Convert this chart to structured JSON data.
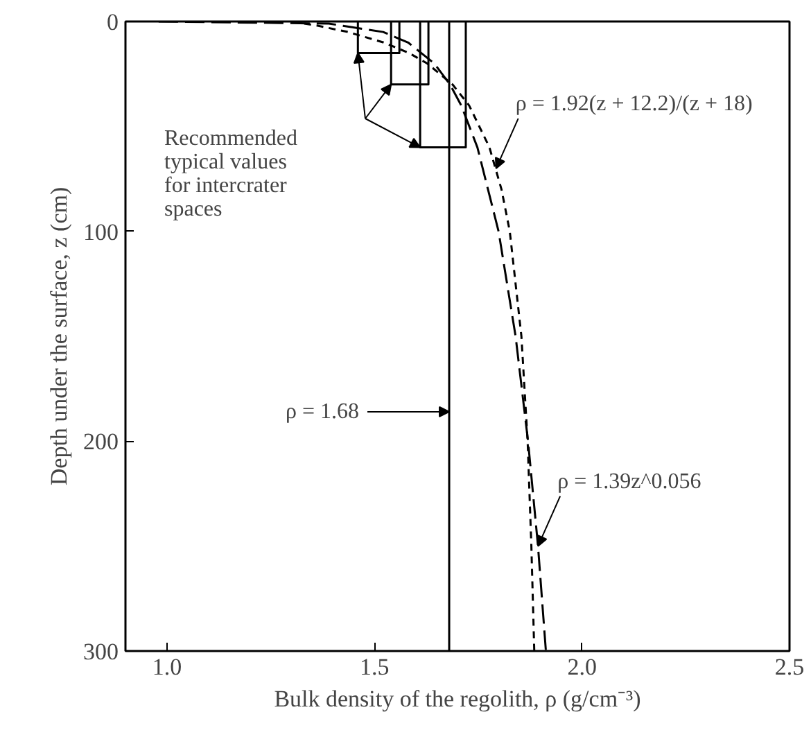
{
  "chart_data": {
    "type": "line",
    "xlabel": "Bulk density of the regolith, ρ (g/cm⁻³)",
    "ylabel": "Depth under the surface, z (cm)",
    "xlim": [
      0.9,
      2.5
    ],
    "ylim": [
      300,
      0
    ],
    "xticks": [
      {
        "value": 1.0,
        "label": "1.0"
      },
      {
        "value": 1.5,
        "label": "1.5"
      },
      {
        "value": 2.0,
        "label": "2.0"
      },
      {
        "value": 2.5,
        "label": "2.5"
      }
    ],
    "yticks": [
      0,
      100,
      200,
      300
    ],
    "grid": false,
    "marker": "none",
    "series": [
      {
        "color": "#000000",
        "line_style": "dotted",
        "x": [
          1.301,
          1.363,
          1.436,
          1.522,
          1.583,
          1.627,
          1.688,
          1.728,
          1.777,
          1.806,
          1.826,
          1.854,
          1.869,
          1.878,
          1.885
        ],
        "values": [
          0,
          2,
          5,
          10,
          15,
          20,
          30,
          40,
          60,
          80,
          100,
          150,
          200,
          250,
          300
        ]
      },
      {
        "color": "#000000",
        "line_style": "dashed",
        "x": [
          0.98,
          1.39,
          1.521,
          1.581,
          1.644,
          1.682,
          1.709,
          1.748,
          1.799,
          1.84,
          1.87,
          1.894,
          1.913
        ],
        "values": [
          0,
          1,
          5,
          10,
          20,
          30,
          40,
          60,
          100,
          150,
          200,
          250,
          300
        ]
      },
      {
        "color": "#000000",
        "line_style": "solid",
        "x": [
          1.46,
          1.46,
          1.56,
          1.56
        ],
        "values": [
          0,
          15,
          15,
          0
        ]
      },
      {
        "color": "#000000",
        "line_style": "solid",
        "x": [
          1.54,
          1.54,
          1.63,
          1.63
        ],
        "values": [
          0,
          30,
          30,
          0
        ]
      },
      {
        "color": "#000000",
        "line_style": "solid",
        "x": [
          1.61,
          1.61,
          1.72,
          1.72
        ],
        "values": [
          0,
          60,
          60,
          0
        ]
      }
    ],
    "ref_lines": [
      {
        "axis": "x",
        "value": 1.68,
        "label": "ρ = 1.68",
        "color": "#000000"
      }
    ],
    "annotations": [
      "Recommended typical values for intercrater spaces",
      {
        "text": "ρ = 1.92(z + 12.2)/(z + 18)",
        "x": 1.793,
        "y": 70
      },
      {
        "text": "ρ = 1.39z^0.056",
        "x": 1.894,
        "y": 250
      }
    ]
  }
}
